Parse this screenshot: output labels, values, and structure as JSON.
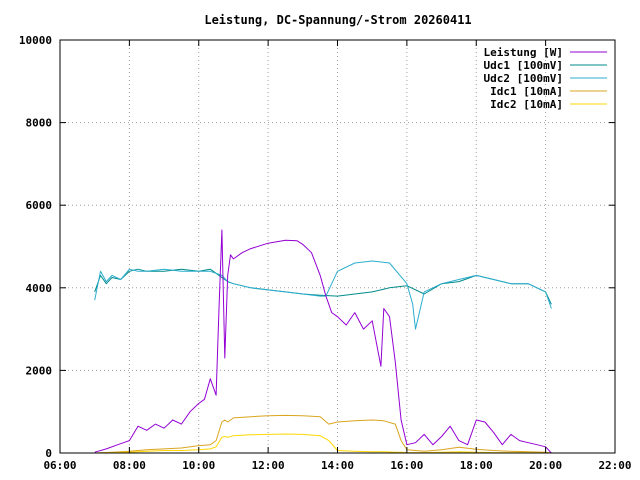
{
  "chart_data": {
    "type": "line",
    "title": "Leistung, DC-Spannung/-Strom 20260411",
    "xlabel": "",
    "ylabel": "",
    "xlim": [
      "06:00",
      "22:00"
    ],
    "ylim": [
      0,
      10000
    ],
    "grid": true,
    "legend_position": "top-right",
    "x_ticks": [
      "06:00",
      "08:00",
      "10:00",
      "12:00",
      "14:00",
      "16:00",
      "18:00",
      "20:00",
      "22:00"
    ],
    "y_ticks": [
      "0",
      "2000",
      "4000",
      "6000",
      "8000",
      "10000"
    ],
    "series": [
      {
        "name": "Leistung [W]",
        "color": "#9400d3",
        "x": [
          "07:00",
          "07:20",
          "07:40",
          "08:00",
          "08:15",
          "08:30",
          "08:45",
          "09:00",
          "09:15",
          "09:30",
          "09:45",
          "10:00",
          "10:10",
          "10:20",
          "10:30",
          "10:35",
          "10:40",
          "10:45",
          "10:50",
          "10:55",
          "11:00",
          "11:15",
          "11:30",
          "12:00",
          "12:30",
          "12:50",
          "13:00",
          "13:15",
          "13:30",
          "13:40",
          "13:50",
          "14:00",
          "14:15",
          "14:30",
          "14:45",
          "15:00",
          "15:15",
          "15:20",
          "15:30",
          "15:40",
          "15:50",
          "16:00",
          "16:15",
          "16:30",
          "16:45",
          "17:00",
          "17:15",
          "17:30",
          "17:45",
          "18:00",
          "18:15",
          "18:30",
          "18:45",
          "19:00",
          "19:15",
          "19:30",
          "19:45",
          "20:00",
          "20:10"
        ],
        "y": [
          20,
          100,
          200,
          300,
          650,
          550,
          700,
          600,
          800,
          700,
          1000,
          1200,
          1300,
          1800,
          1400,
          3500,
          5400,
          2300,
          4300,
          4800,
          4700,
          4850,
          4950,
          5080,
          5150,
          5140,
          5050,
          4850,
          4300,
          3800,
          3400,
          3300,
          3100,
          3400,
          3000,
          3200,
          2100,
          3500,
          3300,
          2200,
          800,
          200,
          250,
          450,
          200,
          400,
          650,
          300,
          200,
          800,
          750,
          500,
          200,
          450,
          300,
          250,
          200,
          150,
          0
        ]
      },
      {
        "name": "Udc1 [100mV]",
        "color": "#008b8b",
        "x": [
          "07:00",
          "07:10",
          "07:20",
          "07:30",
          "07:45",
          "08:00",
          "08:15",
          "08:30",
          "09:00",
          "09:30",
          "10:00",
          "10:20",
          "10:30",
          "10:40",
          "10:50",
          "11:00",
          "11:30",
          "12:00",
          "12:30",
          "13:00",
          "13:30",
          "14:00",
          "14:30",
          "15:00",
          "15:30",
          "16:00",
          "16:30",
          "17:00",
          "17:30",
          "18:00",
          "18:30",
          "19:00",
          "19:30",
          "20:00",
          "20:10"
        ],
        "y": [
          3900,
          4300,
          4100,
          4250,
          4200,
          4400,
          4450,
          4400,
          4400,
          4450,
          4400,
          4450,
          4350,
          4250,
          4150,
          4100,
          4000,
          3950,
          3900,
          3850,
          3820,
          3800,
          3850,
          3900,
          4000,
          4050,
          3850,
          4100,
          4150,
          4300,
          4200,
          4100,
          4100,
          3900,
          3600
        ]
      },
      {
        "name": "Udc2 [100mV]",
        "color": "#2cadcd",
        "x": [
          "07:00",
          "07:10",
          "07:20",
          "07:30",
          "07:45",
          "08:00",
          "08:15",
          "08:30",
          "09:00",
          "09:30",
          "10:00",
          "10:20",
          "10:40",
          "10:50",
          "11:00",
          "11:30",
          "12:00",
          "12:30",
          "13:00",
          "13:30",
          "13:40",
          "14:00",
          "14:30",
          "15:00",
          "15:30",
          "16:00",
          "16:10",
          "16:15",
          "16:30",
          "17:00",
          "17:30",
          "18:00",
          "18:30",
          "19:00",
          "19:30",
          "20:00",
          "20:10"
        ],
        "y": [
          3700,
          4400,
          4150,
          4300,
          4200,
          4450,
          4400,
          4400,
          4450,
          4400,
          4400,
          4400,
          4300,
          4150,
          4100,
          4000,
          3950,
          3900,
          3850,
          3800,
          3800,
          4400,
          4600,
          4650,
          4600,
          4100,
          3600,
          3000,
          3900,
          4100,
          4200,
          4300,
          4200,
          4100,
          4100,
          3900,
          3500
        ]
      },
      {
        "name": "Idc1 [10mA]",
        "color": "#daa520",
        "x": [
          "07:00",
          "07:30",
          "08:00",
          "08:30",
          "09:00",
          "09:30",
          "10:00",
          "10:20",
          "10:30",
          "10:40",
          "10:45",
          "10:50",
          "11:00",
          "11:30",
          "12:00",
          "12:30",
          "13:00",
          "13:30",
          "13:45",
          "14:00",
          "14:30",
          "15:00",
          "15:20",
          "15:40",
          "15:50",
          "16:00",
          "16:30",
          "17:00",
          "17:30",
          "18:00",
          "18:30",
          "19:00",
          "19:30",
          "20:00",
          "20:10"
        ],
        "y": [
          0,
          20,
          40,
          80,
          100,
          120,
          180,
          200,
          300,
          750,
          800,
          750,
          850,
          880,
          900,
          910,
          900,
          880,
          700,
          750,
          780,
          800,
          780,
          700,
          300,
          80,
          40,
          80,
          140,
          90,
          60,
          40,
          30,
          20,
          0
        ]
      },
      {
        "name": "Idc2 [10mA]",
        "color": "#ffd700",
        "x": [
          "07:00",
          "07:30",
          "08:00",
          "08:30",
          "09:00",
          "09:30",
          "10:00",
          "10:20",
          "10:30",
          "10:40",
          "10:45",
          "10:50",
          "11:00",
          "11:30",
          "12:00",
          "12:30",
          "13:00",
          "13:30",
          "13:45",
          "14:00",
          "14:30",
          "15:00",
          "15:20",
          "15:40",
          "15:50",
          "16:00",
          "16:30",
          "17:00",
          "17:30",
          "18:00",
          "18:30",
          "19:00",
          "19:30",
          "20:00",
          "20:10"
        ],
        "y": [
          0,
          10,
          20,
          40,
          60,
          60,
          80,
          100,
          150,
          380,
          400,
          380,
          420,
          440,
          450,
          460,
          450,
          420,
          300,
          60,
          40,
          30,
          30,
          20,
          20,
          10,
          10,
          20,
          30,
          20,
          10,
          10,
          10,
          5,
          0
        ]
      }
    ]
  }
}
